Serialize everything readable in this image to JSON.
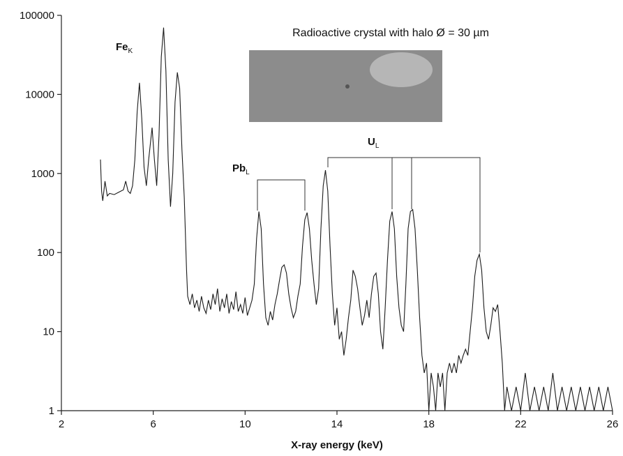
{
  "chart_data": {
    "type": "line",
    "x_label": "X-ray energy (keV)",
    "log_y": true,
    "color": "#1a1a1a",
    "xlim": [
      2,
      26
    ],
    "xticks": [
      2,
      6,
      10,
      14,
      18,
      22,
      26
    ],
    "ylim": [
      1,
      100000
    ],
    "yticks": [
      1,
      10,
      100,
      1000,
      10000,
      100000
    ],
    "inset_label": "Radioactive crystal with halo Ø = 30 µm",
    "annotations": [
      {
        "text": "Fe",
        "subscript": "K"
      },
      {
        "text": "Pb",
        "subscript": "L"
      },
      {
        "text": "U",
        "subscript": "L"
      }
    ],
    "x": [
      3.7,
      3.75,
      3.8,
      3.9,
      4.0,
      4.1,
      4.3,
      4.5,
      4.7,
      4.8,
      4.9,
      5.0,
      5.1,
      5.2,
      5.3,
      5.4,
      5.5,
      5.6,
      5.7,
      5.8,
      5.95,
      6.05,
      6.15,
      6.25,
      6.35,
      6.45,
      6.55,
      6.65,
      6.75,
      6.85,
      6.95,
      7.05,
      7.15,
      7.25,
      7.35,
      7.45,
      7.5,
      7.6,
      7.7,
      7.8,
      7.9,
      8.0,
      8.1,
      8.2,
      8.3,
      8.4,
      8.5,
      8.6,
      8.7,
      8.8,
      8.9,
      9.0,
      9.1,
      9.2,
      9.3,
      9.4,
      9.5,
      9.6,
      9.7,
      9.8,
      9.9,
      10.0,
      10.1,
      10.2,
      10.3,
      10.4,
      10.5,
      10.6,
      10.7,
      10.8,
      10.9,
      11.0,
      11.1,
      11.2,
      11.3,
      11.4,
      11.5,
      11.6,
      11.7,
      11.8,
      11.9,
      12.0,
      12.1,
      12.2,
      12.3,
      12.4,
      12.5,
      12.6,
      12.7,
      12.8,
      12.9,
      13.0,
      13.1,
      13.2,
      13.3,
      13.4,
      13.5,
      13.6,
      13.7,
      13.8,
      13.9,
      14.0,
      14.1,
      14.2,
      14.3,
      14.4,
      14.5,
      14.6,
      14.7,
      14.8,
      14.9,
      15.0,
      15.1,
      15.2,
      15.3,
      15.4,
      15.5,
      15.6,
      15.7,
      15.8,
      15.9,
      16.0,
      16.1,
      16.2,
      16.3,
      16.4,
      16.5,
      16.6,
      16.7,
      16.8,
      16.9,
      17.0,
      17.1,
      17.2,
      17.3,
      17.4,
      17.5,
      17.6,
      17.7,
      17.8,
      17.9,
      18.0,
      18.1,
      18.2,
      18.3,
      18.4,
      18.5,
      18.6,
      18.7,
      18.8,
      18.9,
      19.0,
      19.1,
      19.2,
      19.3,
      19.4,
      19.5,
      19.6,
      19.7,
      19.8,
      19.9,
      20.0,
      20.1,
      20.2,
      20.3,
      20.4,
      20.5,
      20.6,
      20.7,
      20.8,
      20.9,
      21.0,
      21.1,
      21.2,
      21.3,
      21.4,
      21.6,
      21.8,
      22.0,
      22.2,
      22.4,
      22.6,
      22.8,
      23.0,
      23.2,
      23.4,
      23.6,
      23.8,
      24.0,
      24.2,
      24.4,
      24.6,
      24.8,
      25.0,
      25.2,
      25.4,
      25.6,
      25.8,
      26.0
    ],
    "values": [
      1500,
      600,
      450,
      800,
      520,
      560,
      540,
      580,
      620,
      800,
      600,
      560,
      700,
      1500,
      6000,
      14000,
      5000,
      1200,
      700,
      1500,
      3800,
      1500,
      700,
      3000,
      30000,
      70000,
      20000,
      1500,
      380,
      1000,
      8000,
      19000,
      12000,
      2000,
      500,
      60,
      28,
      22,
      30,
      20,
      25,
      18,
      28,
      20,
      17,
      25,
      19,
      30,
      22,
      35,
      18,
      26,
      20,
      30,
      17,
      24,
      19,
      32,
      18,
      22,
      17,
      27,
      16,
      20,
      25,
      40,
      150,
      330,
      200,
      40,
      15,
      12,
      18,
      14,
      22,
      30,
      45,
      65,
      70,
      55,
      30,
      20,
      15,
      18,
      28,
      40,
      120,
      260,
      320,
      200,
      80,
      40,
      22,
      35,
      200,
      700,
      1100,
      600,
      120,
      30,
      12,
      20,
      8,
      10,
      5,
      8,
      15,
      25,
      60,
      50,
      35,
      20,
      12,
      16,
      25,
      15,
      30,
      50,
      55,
      30,
      10,
      6,
      20,
      80,
      250,
      330,
      200,
      50,
      20,
      12,
      10,
      40,
      200,
      330,
      350,
      200,
      60,
      15,
      5,
      3,
      4,
      1,
      3,
      2,
      1,
      3,
      2,
      3,
      1,
      3,
      4,
      3,
      4,
      3,
      5,
      4,
      5,
      6,
      5,
      10,
      20,
      50,
      80,
      95,
      60,
      20,
      10,
      8,
      12,
      20,
      18,
      22,
      10,
      4,
      1,
      2,
      1,
      2,
      1,
      3,
      1,
      2,
      1,
      2,
      1,
      3,
      1,
      2,
      1,
      2,
      1,
      2,
      1,
      2,
      1,
      2,
      1,
      2,
      1
    ]
  }
}
